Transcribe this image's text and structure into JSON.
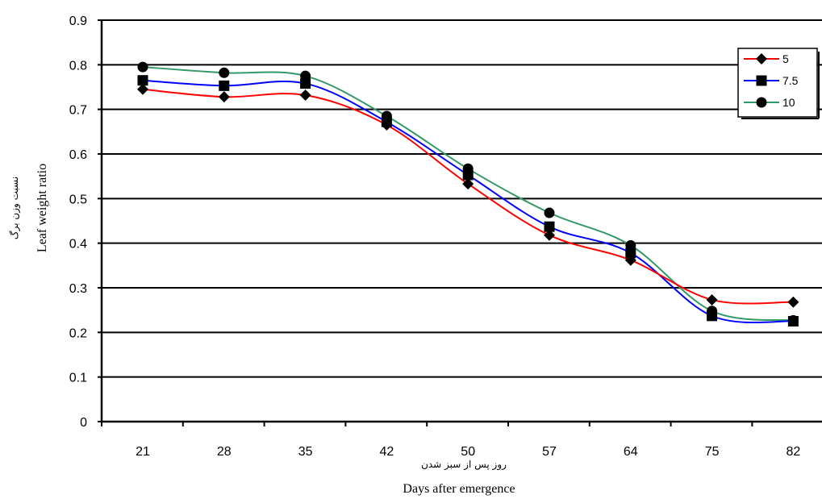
{
  "chart_data": {
    "type": "line",
    "categories": [
      "21",
      "28",
      "35",
      "42",
      "50",
      "57",
      "64",
      "75",
      "82"
    ],
    "series": [
      {
        "name": "5",
        "color": "#ff0000",
        "marker": "diamond",
        "values": [
          0.745,
          0.728,
          0.732,
          0.665,
          0.533,
          0.418,
          0.362,
          0.273,
          0.268
        ]
      },
      {
        "name": "7.5",
        "color": "#0000ff",
        "marker": "square",
        "values": [
          0.765,
          0.753,
          0.758,
          0.672,
          0.553,
          0.437,
          0.378,
          0.237,
          0.225
        ]
      },
      {
        "name": "10",
        "color": "#339966",
        "marker": "circle",
        "values": [
          0.795,
          0.782,
          0.775,
          0.685,
          0.567,
          0.468,
          0.395,
          0.248,
          0.227
        ]
      }
    ],
    "ylim": [
      0,
      0.9
    ],
    "yticks": [
      "0",
      "0.1",
      "0.2",
      "0.3",
      "0.4",
      "0.5",
      "0.6",
      "0.7",
      "0.8",
      "0.9"
    ],
    "xlabel_fa": "روز پس از سبز شدن",
    "xlabel_en": "Days after emergence",
    "ylabel_fa": "نسبت وزن برگ",
    "ylabel_en": "Leaf weight ratio",
    "grid": "horizontal",
    "legend_position": "top-right"
  }
}
